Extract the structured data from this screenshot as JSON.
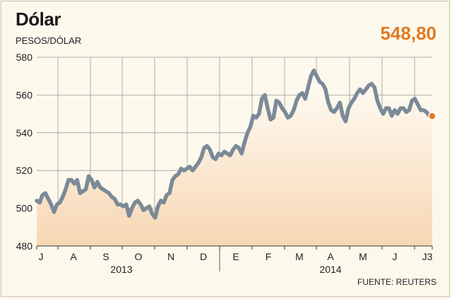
{
  "header": {
    "title": "Dólar",
    "subtitle": "PESOS/DÓLAR",
    "last_value": "548,80"
  },
  "footer": {
    "source": "FUENTE: REUTERS"
  },
  "colors": {
    "line": "#7b8a97",
    "accent": "#e07a24",
    "grid": "#9a9a9a",
    "area_top": "#fffdf7",
    "area_bottom": "#f7d7b4"
  },
  "chart_data": {
    "type": "area",
    "title": "Dólar",
    "ylabel": "PESOS/DÓLAR",
    "ylim": [
      480,
      580
    ],
    "yticks": [
      480,
      500,
      520,
      540,
      560,
      580
    ],
    "months": [
      "J",
      "A",
      "S",
      "O",
      "N",
      "D",
      "E",
      "F",
      "M",
      "A",
      "M",
      "J",
      "J3"
    ],
    "years": [
      "2013",
      "2014"
    ],
    "grid": true,
    "last_value": 548.8,
    "series": [
      {
        "values": [
          504,
          503,
          507,
          508,
          505,
          502,
          498,
          502,
          503,
          506,
          510,
          515,
          515,
          513,
          515,
          508,
          509,
          510,
          517,
          515,
          511,
          514,
          511,
          510,
          509,
          508,
          506,
          505,
          502,
          502,
          501,
          502,
          496,
          500,
          503,
          504,
          502,
          499,
          500,
          501,
          497,
          495,
          501,
          504,
          503,
          507,
          508,
          515,
          517,
          518,
          521,
          520,
          521,
          522,
          520,
          522,
          524,
          527,
          532,
          533,
          531,
          527,
          526,
          529,
          528,
          530,
          529,
          528,
          531,
          533,
          532,
          529,
          535,
          540,
          543,
          549,
          548,
          550,
          558,
          560,
          553,
          547,
          548,
          557,
          556,
          553,
          551,
          548,
          549,
          552,
          557,
          560,
          561,
          558,
          564,
          570,
          573,
          570,
          567,
          566,
          563,
          556,
          552,
          551,
          553,
          556,
          549,
          546,
          553,
          556,
          558,
          561,
          563,
          561,
          563,
          565,
          566,
          564,
          557,
          553,
          550,
          553,
          553,
          549,
          552,
          550,
          553,
          553,
          551,
          552,
          557,
          558,
          555,
          552,
          552,
          551,
          549,
          548.8
        ]
      }
    ]
  }
}
